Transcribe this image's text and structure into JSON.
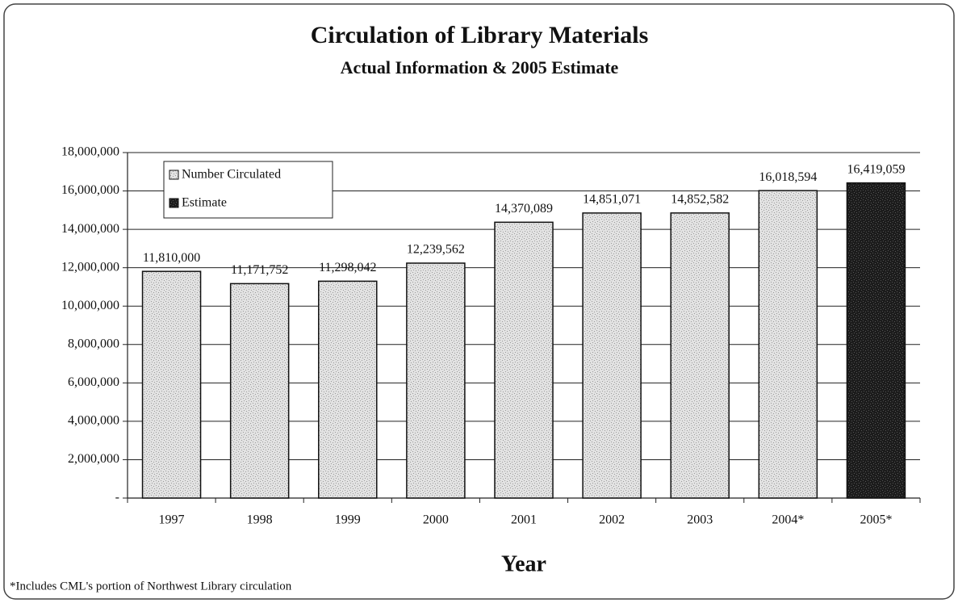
{
  "chart_data": {
    "type": "bar",
    "title": "Circulation of Library Materials",
    "subtitle": "Actual Information & 2005 Estimate",
    "x_label": "Year",
    "footnote": "*Includes CML's portion of Northwest Library circulation",
    "categories": [
      "1997",
      "1998",
      "1999",
      "2000",
      "2001",
      "2002",
      "2003",
      "2004*",
      "2005*"
    ],
    "series": [
      {
        "name": "Number Circulated",
        "color": "#e2e2e2",
        "values": [
          11810000,
          11171752,
          11298042,
          12239562,
          14370089,
          14851071,
          14852582,
          16018594,
          null
        ],
        "value_labels": [
          "11,810,000",
          "11,171,752",
          "11,298,042",
          "12,239,562",
          "14,370,089",
          "14,851,071",
          "14,852,582",
          "16,018,594",
          null
        ]
      },
      {
        "name": "Estimate",
        "color": "#1c1c1c",
        "values": [
          null,
          null,
          null,
          null,
          null,
          null,
          null,
          null,
          16419059
        ],
        "value_labels": [
          null,
          null,
          null,
          null,
          null,
          null,
          null,
          null,
          "16,419,059"
        ]
      }
    ],
    "ylim": [
      0,
      18000000
    ],
    "yticks": [
      {
        "value": 0,
        "label": "-"
      },
      {
        "value": 2000000,
        "label": "2,000,000"
      },
      {
        "value": 4000000,
        "label": "4,000,000"
      },
      {
        "value": 6000000,
        "label": "6,000,000"
      },
      {
        "value": 8000000,
        "label": "8,000,000"
      },
      {
        "value": 10000000,
        "label": "10,000,000"
      },
      {
        "value": 12000000,
        "label": "12,000,000"
      },
      {
        "value": 14000000,
        "label": "14,000,000"
      },
      {
        "value": 16000000,
        "label": "16,000,000"
      },
      {
        "value": 18000000,
        "label": "18,000,000"
      }
    ],
    "grid": true,
    "legend": "upper left"
  }
}
